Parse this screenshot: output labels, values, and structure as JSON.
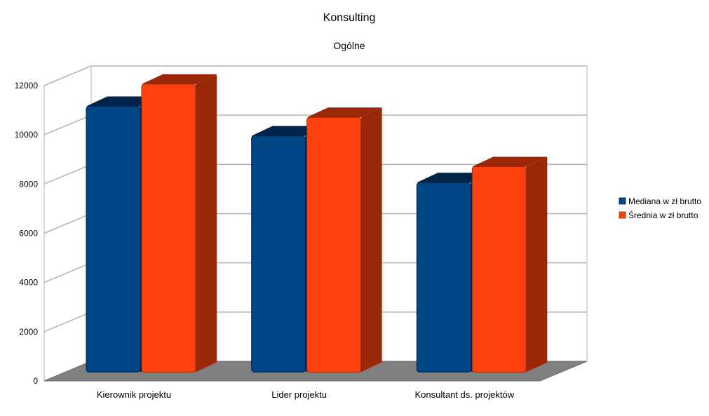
{
  "chart_data": {
    "type": "bar",
    "title": "Konsulting",
    "subtitle": "Ogólne",
    "xlabel": "",
    "ylabel": "",
    "categories": [
      "Kierownik projektu",
      "Lider projektu",
      "Konsultant ds. projektów"
    ],
    "series": [
      {
        "name": "Mediana w zł brutto",
        "color": "#004586",
        "side_color": "#00234a",
        "values": [
          10800,
          9600,
          7700
        ]
      },
      {
        "name": "Średnia w zł brutto",
        "color": "#ff420e",
        "side_color": "#9a2808",
        "values": [
          11700,
          10350,
          8350
        ]
      }
    ],
    "ylim": [
      0,
      12000
    ],
    "yticks": [
      0,
      2000,
      4000,
      6000,
      8000,
      10000,
      12000
    ],
    "grid": true,
    "legend_position": "right",
    "three_d": true
  }
}
